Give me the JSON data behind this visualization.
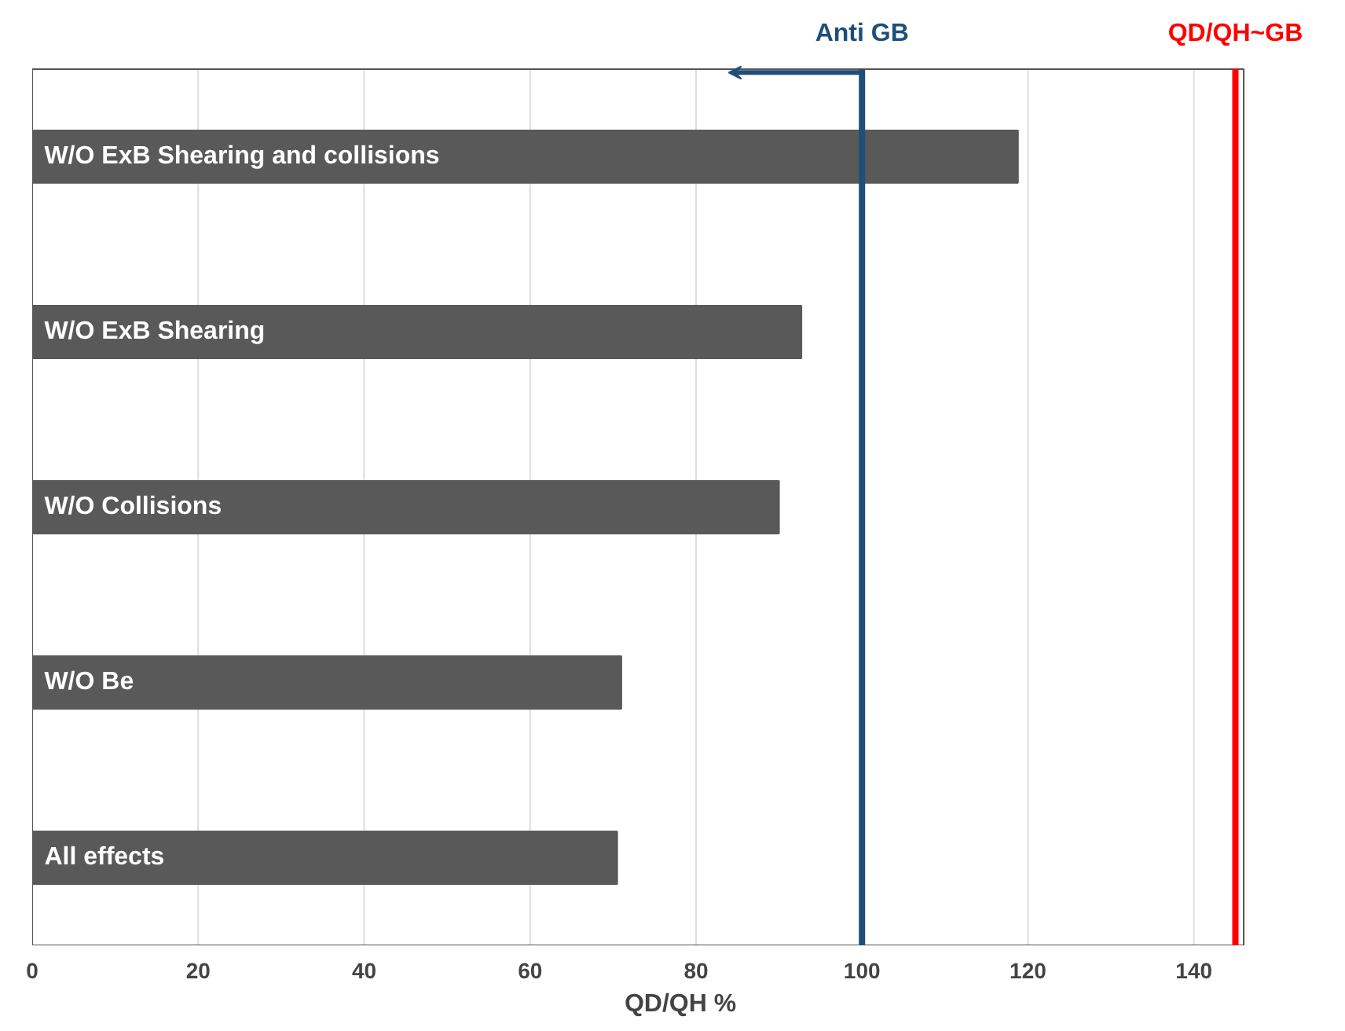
{
  "chart_data": {
    "type": "bar",
    "orientation": "horizontal",
    "xlabel": "QD/QH %",
    "categories": [
      "W/O ExB Shearing and collisions",
      "W/O ExB Shearing",
      "W/O Collisions",
      "W/O Be",
      "All effects"
    ],
    "values": [
      118.8,
      92.7,
      90,
      71,
      70.5
    ],
    "color": "#595959",
    "xlim": [
      0,
      146
    ],
    "xticks": [
      0,
      20,
      40,
      60,
      80,
      100,
      120,
      140
    ],
    "grid": "x",
    "ref_lines": [
      {
        "axis": "x",
        "value": 100,
        "label": "Anti GB",
        "color": "#1f4e79"
      },
      {
        "axis": "x",
        "value": 145,
        "label": "QD/QH~GB",
        "color": "#ff0000"
      }
    ]
  }
}
